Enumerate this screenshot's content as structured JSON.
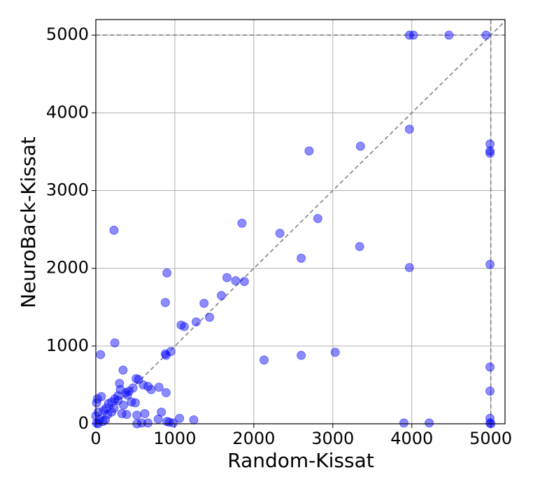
{
  "chart_data": {
    "type": "scatter",
    "x_label": "Random-Kissat",
    "y_label": "NeuroBack-Kissat",
    "color": "#0000ff",
    "x": [
      3970,
      4020,
      4470,
      4940,
      2700,
      3350,
      3970,
      4990,
      4990,
      4990,
      230,
      1850,
      2330,
      2810,
      3340,
      2600,
      3970,
      4990,
      900,
      1660,
      1770,
      1880,
      1590,
      1370,
      880,
      1440,
      1080,
      1120,
      1270,
      240,
      880,
      890,
      950,
      60,
      2130,
      2600,
      3030,
      4990,
      4990,
      4990,
      4990,
      5000,
      3900,
      4220,
      1240,
      1060,
      790,
      830,
      900,
      930,
      980,
      890,
      800,
      510,
      540,
      345,
      600,
      660,
      700,
      470,
      420,
      380,
      300,
      310,
      280,
      240,
      200,
      160,
      130,
      100,
      70,
      20,
      10,
      30,
      0,
      50,
      90,
      150,
      200,
      350,
      330,
      390,
      450,
      500,
      520,
      580,
      620,
      660,
      520,
      10,
      30,
      120,
      400,
      280,
      230
    ],
    "values": [
      5000,
      5000,
      5000,
      5000,
      3510,
      3570,
      3790,
      3600,
      3510,
      3480,
      2490,
      2580,
      2450,
      2640,
      2280,
      2130,
      2010,
      2050,
      1940,
      1880,
      1840,
      1830,
      1650,
      1550,
      1560,
      1370,
      1270,
      1250,
      1310,
      1040,
      900,
      880,
      930,
      890,
      820,
      880,
      920,
      730,
      420,
      70,
      10,
      0,
      10,
      10,
      50,
      70,
      60,
      150,
      30,
      20,
      10,
      400,
      470,
      580,
      570,
      690,
      500,
      480,
      440,
      460,
      420,
      400,
      520,
      440,
      360,
      320,
      280,
      260,
      200,
      170,
      350,
      320,
      270,
      150,
      100,
      60,
      30,
      120,
      150,
      240,
      130,
      120,
      280,
      270,
      110,
      10,
      130,
      10,
      0,
      10,
      0,
      50,
      370,
      300,
      200
    ],
    "xlim": [
      0,
      5180
    ],
    "ylim": [
      0,
      5200
    ],
    "xticks": [
      0,
      1000,
      2000,
      3000,
      4000,
      5000
    ],
    "yticks": [
      0,
      1000,
      2000,
      3000,
      4000,
      5000
    ],
    "grid": true,
    "reference_lines": {
      "diagonal": true,
      "hline": 5000,
      "vline": 5000
    }
  }
}
